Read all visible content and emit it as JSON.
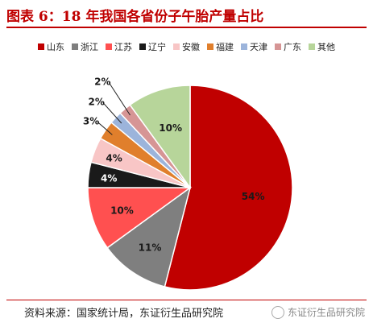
{
  "header": {
    "title": "图表 6：18 年我国各省份子午胎产量占比"
  },
  "footer": {
    "source": "资料来源：国家统计局，东证衍生品研究院",
    "brand": "东证衍生品研究院"
  },
  "chart_data": {
    "type": "pie",
    "categories": [
      "山东",
      "浙江",
      "江苏",
      "辽宁",
      "安徽",
      "福建",
      "天津",
      "广东",
      "其他"
    ],
    "values": [
      54,
      11,
      10,
      4,
      4,
      3,
      2,
      2,
      10
    ],
    "labels": [
      "54%",
      "11%",
      "10%",
      "4%",
      "4%",
      "3%",
      "2%",
      "2%",
      "10%"
    ],
    "colors": [
      "#c00000",
      "#7f7f7f",
      "#ff5050",
      "#1a1a1a",
      "#f8c6c6",
      "#e07f2c",
      "#9cb4db",
      "#d69595",
      "#b7d59a"
    ],
    "legend_position": "top",
    "start_angle_deg": 0,
    "direction": "clockwise"
  }
}
